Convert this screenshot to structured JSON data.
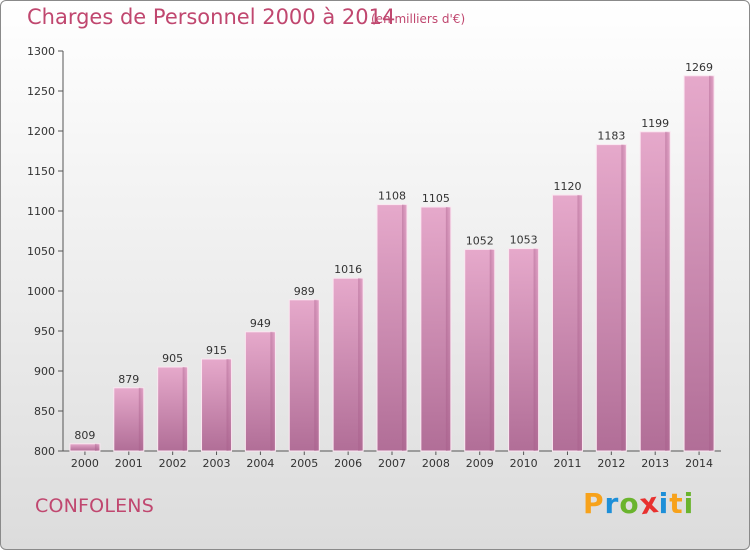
{
  "title": "Charges de Personnel 2000 à 2014",
  "subtitle": "(en milliers d'€)",
  "commune": "CONFOLENS",
  "brand": {
    "letters": [
      "P",
      "r",
      "o",
      "x",
      "i",
      "t",
      "i"
    ],
    "colors": [
      "#f7a21b",
      "#1d8fd8",
      "#6ab42d",
      "#e8312f",
      "#1d8fd8",
      "#f7a21b",
      "#6ab42d"
    ]
  },
  "chart_data": {
    "type": "bar",
    "categories": [
      "2000",
      "2001",
      "2002",
      "2003",
      "2004",
      "2005",
      "2006",
      "2007",
      "2008",
      "2009",
      "2010",
      "2011",
      "2012",
      "2013",
      "2014"
    ],
    "values": [
      809,
      879,
      905,
      915,
      949,
      989,
      1016,
      1108,
      1105,
      1052,
      1053,
      1120,
      1183,
      1199,
      1269
    ],
    "ylim": [
      800,
      1300
    ],
    "yticks": [
      800,
      850,
      900,
      950,
      1000,
      1050,
      1100,
      1150,
      1200,
      1250,
      1300
    ],
    "bar_color": "#d98fb5",
    "grid": false,
    "xlabel": "",
    "ylabel": ""
  }
}
